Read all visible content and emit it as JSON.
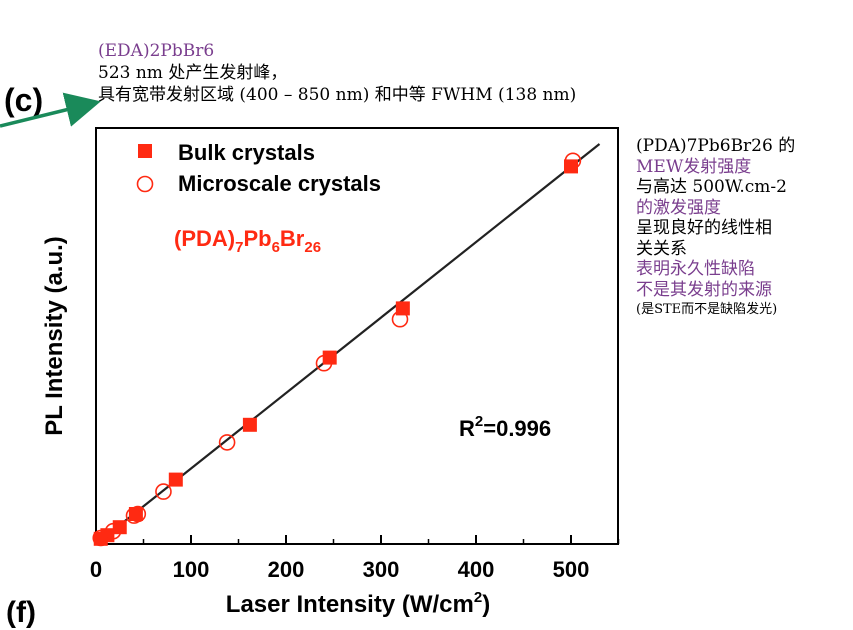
{
  "panel_label": "(c)",
  "panel_label_next": "(f)",
  "annotation_top": {
    "line1": "(EDA)2PbBr6",
    "line2": "523 nm 处产生发射峰，",
    "line3": "具有宽带发射区域 (400 – 850 nm) 和中等 FWHM (138 nm)"
  },
  "annotation_right": {
    "line1": "(PDA)7Pb6Br26 的",
    "line2": "MEW发射强度",
    "line3": "与高达 500W.cm-2",
    "line4": "的激发强度",
    "line5": "呈现良好的线性相",
    "line6": "关关系",
    "line7": "表明永久性缺陷",
    "line8": "不是其发射的来源",
    "line9": "(是STE而不是缺陷发光)"
  },
  "colors": {
    "marker": "#ff2a12",
    "arrow": "#1a8a5a",
    "annotation_purple": "#7a3e8e",
    "fit_line": "#222222"
  },
  "chart_data": {
    "type": "scatter",
    "xlabel_main": "Laser Intensity",
    "xlabel_unit": "(W/cm",
    "xlabel_sup": "2",
    "xlabel_close": ")",
    "ylabel": "PL Intensity (a.u.)",
    "xlim": [
      0,
      550
    ],
    "ylim": [
      0,
      1.0
    ],
    "x_ticks": [
      0,
      100,
      200,
      300,
      400,
      500
    ],
    "compound_label": {
      "base": "(PDA)",
      "s1": "7",
      "m1": "Pb",
      "s2": "6",
      "m2": "Br",
      "s3": "26"
    },
    "r_squared": {
      "prefix": "R",
      "sup": "2",
      "value": "=0.996"
    },
    "series": [
      {
        "name": "Bulk crystals",
        "marker": "filled-square",
        "x": [
          5,
          12,
          25,
          42,
          84,
          162,
          246,
          323,
          500
        ],
        "y": [
          0.013,
          0.022,
          0.042,
          0.075,
          0.161,
          0.298,
          0.466,
          0.589,
          0.944
        ]
      },
      {
        "name": "Microscale crystals",
        "marker": "open-circle",
        "x": [
          5,
          18,
          40,
          44,
          71,
          138,
          240,
          320,
          502
        ],
        "y": [
          0.015,
          0.032,
          0.071,
          0.075,
          0.131,
          0.254,
          0.452,
          0.562,
          0.958
        ]
      }
    ],
    "fit": {
      "x": [
        0,
        530
      ],
      "y": [
        0.0,
        1.0
      ]
    }
  }
}
